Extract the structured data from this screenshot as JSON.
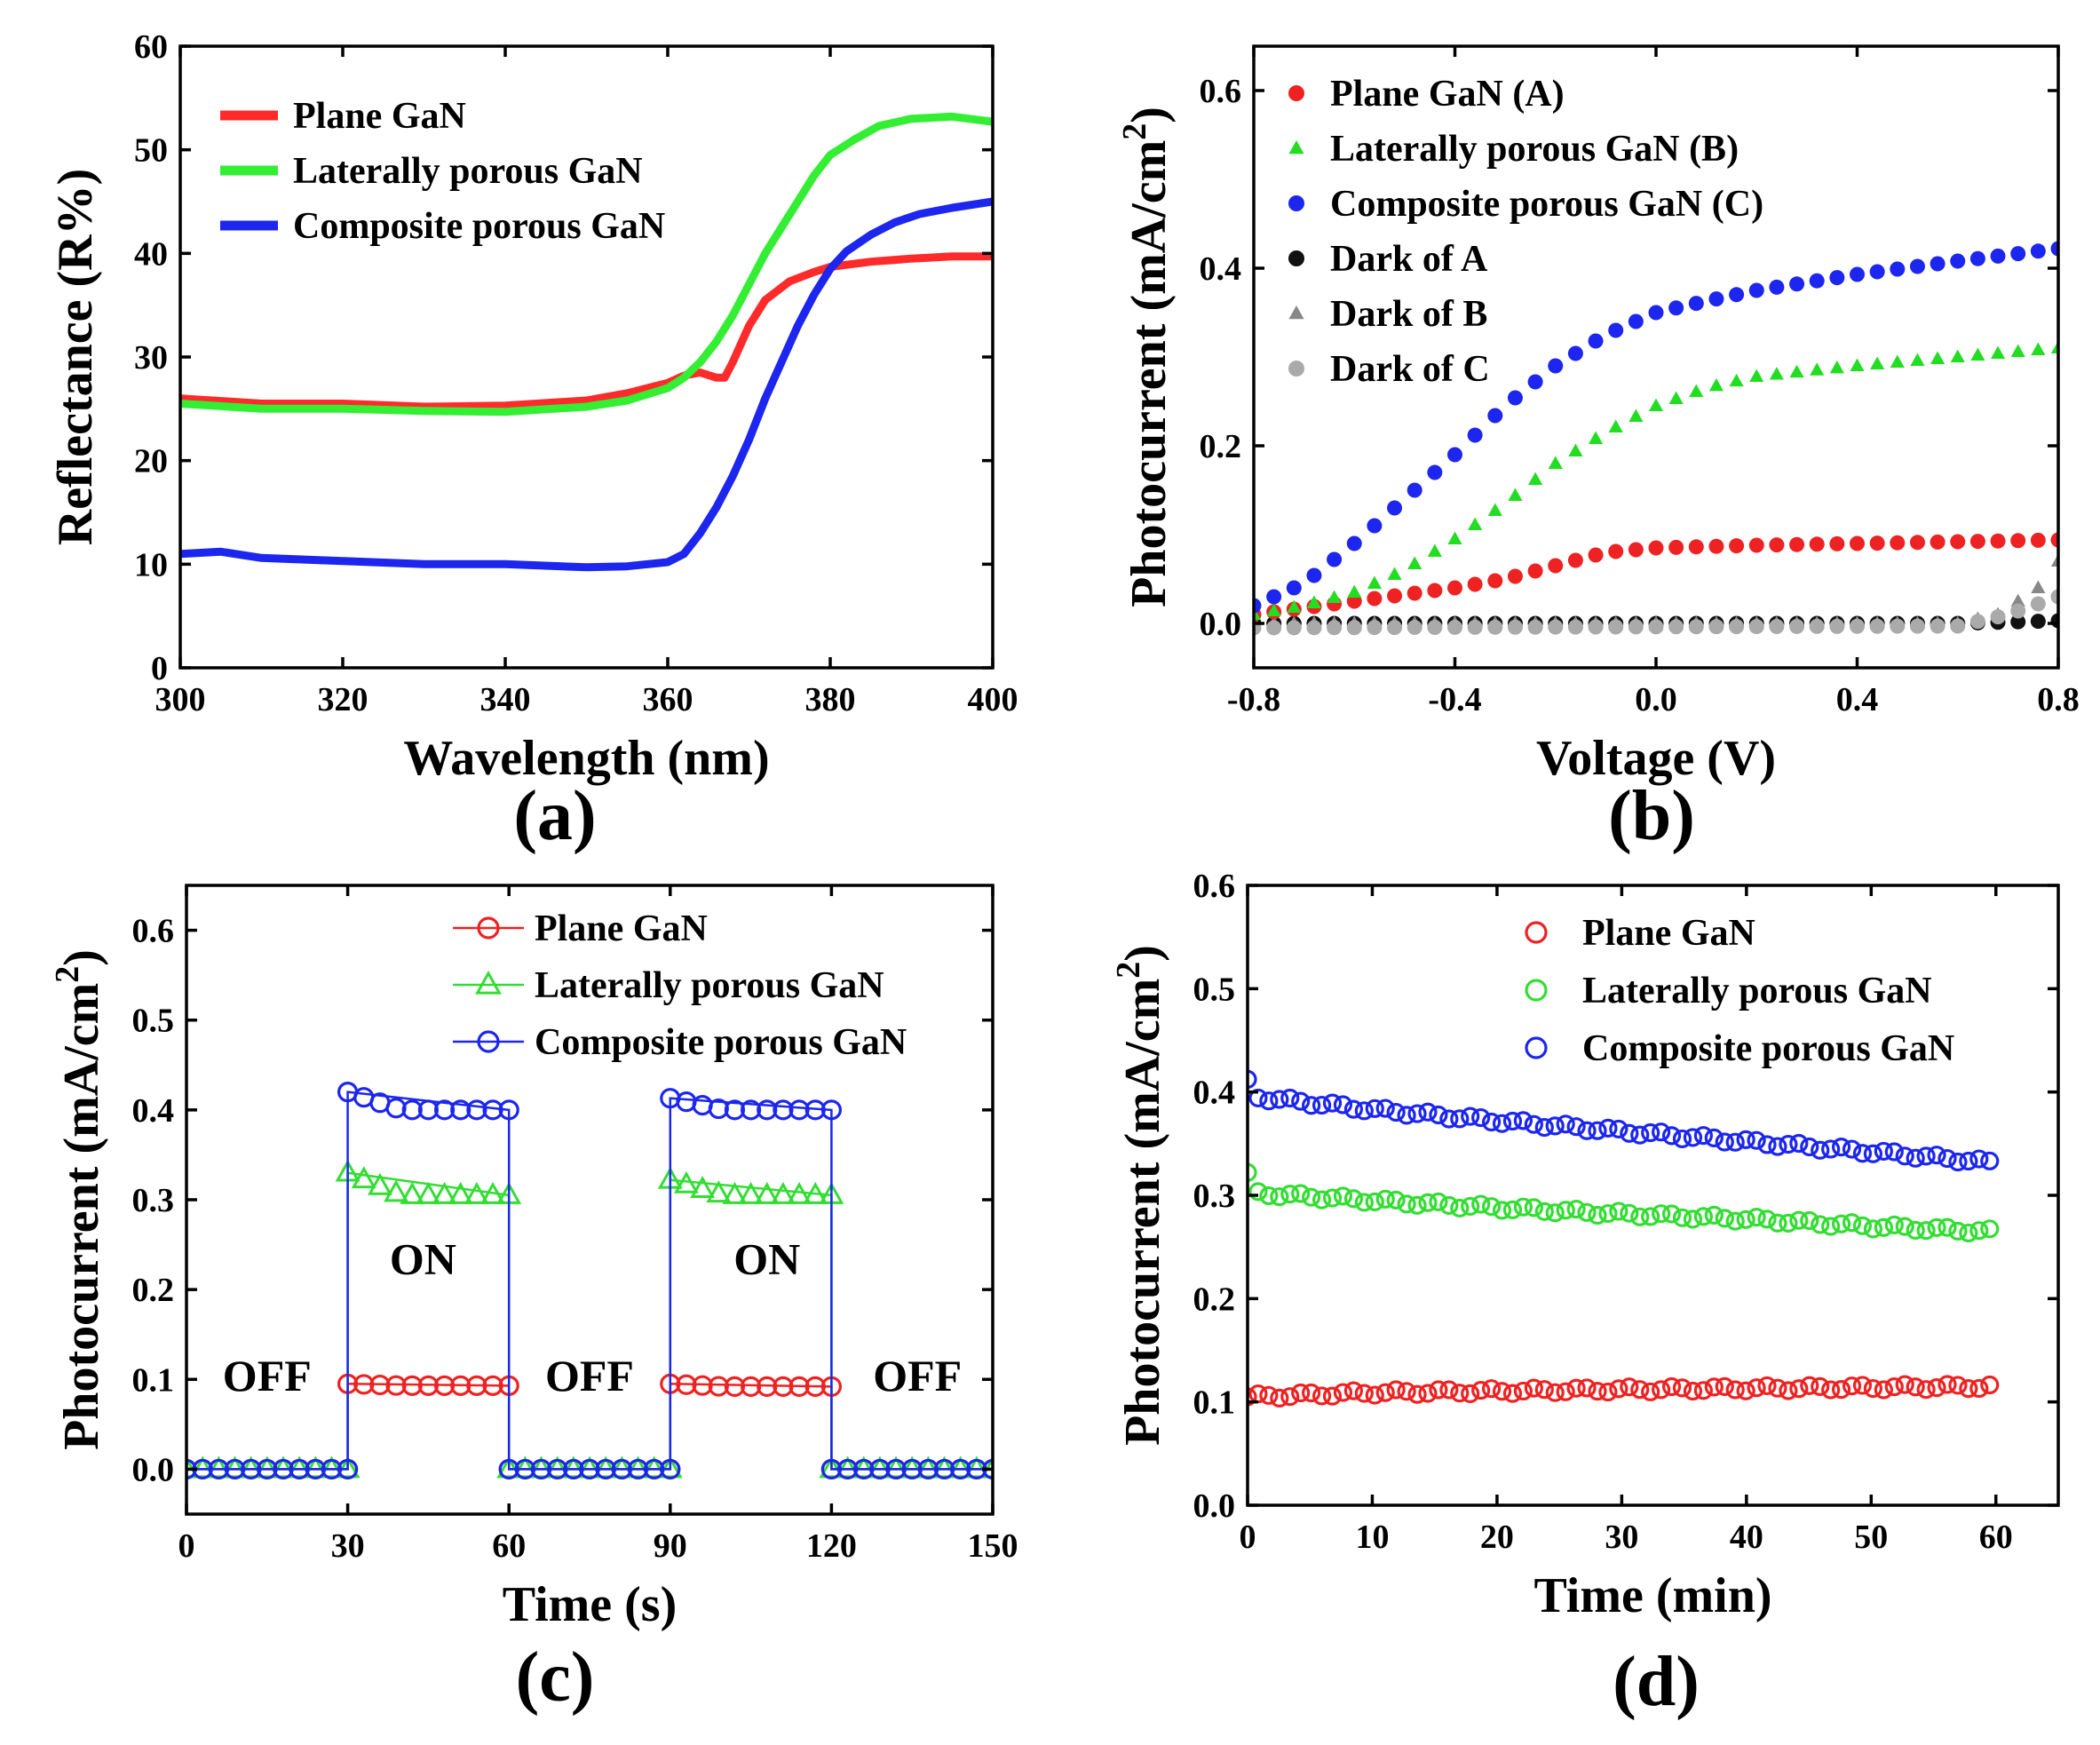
{
  "chart_data": [
    {
      "panel_label": "(a)",
      "type": "line",
      "xlabel": "Wavelength (nm)",
      "ylabel": "Reflectance (R%)",
      "xlim": [
        300,
        400
      ],
      "ylim": [
        0,
        60
      ],
      "xticks": [
        300,
        320,
        340,
        360,
        380,
        400
      ],
      "yticks": [
        0,
        10,
        20,
        30,
        40,
        50,
        60
      ],
      "legend_position": "top-left",
      "series": [
        {
          "name": "Plane GaN",
          "color": "#ff2a2a",
          "x": [
            300,
            310,
            320,
            330,
            340,
            350,
            355,
            360,
            362,
            364,
            366,
            367,
            368,
            370,
            372,
            375,
            378,
            380,
            385,
            390,
            395,
            400
          ],
          "y": [
            26,
            25.5,
            25.5,
            25.2,
            25.3,
            25.8,
            26.5,
            27.5,
            28.2,
            28.5,
            28,
            28,
            29.5,
            33,
            35.5,
            37.3,
            38.2,
            38.7,
            39.2,
            39.5,
            39.7,
            39.7
          ]
        },
        {
          "name": "Laterally porous GaN",
          "color": "#33ee33",
          "x": [
            300,
            310,
            320,
            330,
            340,
            350,
            355,
            360,
            362,
            364,
            366,
            368,
            370,
            372,
            374,
            376,
            378,
            380,
            383,
            386,
            390,
            395,
            400
          ],
          "y": [
            25.5,
            25,
            25,
            24.8,
            24.7,
            25.2,
            25.8,
            27,
            28,
            29.5,
            31.5,
            34,
            37,
            40,
            42.5,
            45,
            47.5,
            49.5,
            51,
            52.3,
            53,
            53.2,
            52.7
          ]
        },
        {
          "name": "Composite porous GaN",
          "color": "#1c26ee",
          "x": [
            300,
            305,
            310,
            320,
            330,
            340,
            350,
            355,
            360,
            362,
            364,
            366,
            368,
            370,
            372,
            374,
            376,
            378,
            380,
            382,
            385,
            388,
            391,
            395,
            400
          ],
          "y": [
            11,
            11.2,
            10.6,
            10.3,
            10,
            10,
            9.7,
            9.8,
            10.2,
            11,
            13,
            15.5,
            18.5,
            22,
            26,
            29.5,
            33,
            36,
            38.5,
            40.2,
            41.8,
            43,
            43.8,
            44.4,
            45
          ]
        }
      ]
    },
    {
      "panel_label": "(b)",
      "type": "scatter",
      "xlabel": "Voltage (V)",
      "ylabel": "Photocurrent (mA/cm",
      "ylabel_sup": "2",
      "ylabel_end": ")",
      "xlim": [
        -0.8,
        0.8
      ],
      "ylim": [
        -0.05,
        0.65
      ],
      "xticks": [
        -0.8,
        -0.4,
        0.0,
        0.4,
        0.8
      ],
      "xtick_labels": [
        "-0.8",
        "-0.4",
        "0.0",
        "0.4",
        "0.8"
      ],
      "yticks": [
        0.0,
        0.2,
        0.4,
        0.6
      ],
      "ytick_labels": [
        "0.0",
        "0.2",
        "0.4",
        "0.6"
      ],
      "x_start": -0.8,
      "x_step": 0.04,
      "legend_position": "top-left",
      "series": [
        {
          "name": "Plane GaN (A)",
          "color": "#ee2222",
          "marker": "circle",
          "knots_x": [
            -0.8,
            -0.6,
            -0.4,
            -0.3,
            -0.2,
            -0.1,
            0.0,
            0.2,
            0.4,
            0.6,
            0.8
          ],
          "knots_y": [
            0.01,
            0.025,
            0.04,
            0.05,
            0.065,
            0.08,
            0.085,
            0.088,
            0.09,
            0.092,
            0.094
          ]
        },
        {
          "name": "Laterally porous GaN (B)",
          "color": "#22dd22",
          "marker": "triangle",
          "knots_x": [
            -0.8,
            -0.7,
            -0.6,
            -0.5,
            -0.4,
            -0.3,
            -0.2,
            -0.1,
            0.0,
            0.1,
            0.2,
            0.4,
            0.6,
            0.8
          ],
          "knots_y": [
            0.01,
            0.02,
            0.035,
            0.06,
            0.095,
            0.135,
            0.18,
            0.215,
            0.245,
            0.265,
            0.278,
            0.29,
            0.3,
            0.31
          ]
        },
        {
          "name": "Composite porous GaN (C)",
          "color": "#1c26ee",
          "marker": "circle",
          "knots_x": [
            -0.8,
            -0.7,
            -0.6,
            -0.5,
            -0.4,
            -0.3,
            -0.2,
            -0.1,
            0.0,
            0.1,
            0.2,
            0.4,
            0.6,
            0.8
          ],
          "knots_y": [
            0.02,
            0.045,
            0.09,
            0.14,
            0.19,
            0.245,
            0.29,
            0.325,
            0.35,
            0.363,
            0.375,
            0.393,
            0.408,
            0.422
          ]
        },
        {
          "name": "Dark of A",
          "color": "#111111",
          "marker": "circle",
          "knots_x": [
            -0.8,
            0.6,
            0.8
          ],
          "knots_y": [
            0.0,
            0.0,
            0.003
          ]
        },
        {
          "name": "Dark of B",
          "color": "#888888",
          "marker": "triangle",
          "knots_x": [
            -0.8,
            0.6,
            0.68,
            0.76,
            0.8
          ],
          "knots_y": [
            0.0,
            0.0,
            0.01,
            0.04,
            0.07
          ]
        },
        {
          "name": "Dark of C",
          "color": "#aaaaaa",
          "marker": "circle",
          "knots_x": [
            -0.8,
            0.6,
            0.7,
            0.8
          ],
          "knots_y": [
            -0.005,
            -0.003,
            0.01,
            0.03
          ]
        }
      ]
    },
    {
      "panel_label": "(c)",
      "type": "line",
      "xlabel": "Time (s)",
      "ylabel": "Photocurrent (mA/cm",
      "ylabel_sup": "2",
      "ylabel_end": ")",
      "xlim": [
        0,
        150
      ],
      "ylim": [
        -0.05,
        0.65
      ],
      "xticks": [
        0,
        30,
        60,
        90,
        120,
        150
      ],
      "yticks": [
        0.0,
        0.1,
        0.2,
        0.3,
        0.4,
        0.5,
        0.6
      ],
      "ytick_labels": [
        "0.0",
        "0.1",
        "0.2",
        "0.3",
        "0.4",
        "0.5",
        "0.6"
      ],
      "marker_step": 3,
      "legend_position": "top-right",
      "on_intervals": [
        [
          30,
          60
        ],
        [
          90,
          120
        ]
      ],
      "annotations": [
        {
          "text": "OFF",
          "x": 15,
          "y": 0.105
        },
        {
          "text": "ON",
          "x": 44,
          "y": 0.235
        },
        {
          "text": "OFF",
          "x": 75,
          "y": 0.105
        },
        {
          "text": "ON",
          "x": 108,
          "y": 0.235
        },
        {
          "text": "OFF",
          "x": 136,
          "y": 0.105
        }
      ],
      "series": [
        {
          "name": "Plane GaN",
          "color": "#ee2222",
          "marker": "circle",
          "on_values": [
            [
              0.095,
              0.093
            ],
            [
              0.095,
              0.092
            ]
          ],
          "off_value": 0.0
        },
        {
          "name": "Laterally porous GaN",
          "color": "#33dd33",
          "marker": "triangle",
          "on_values": [
            [
              0.33,
              0.305
            ],
            [
              0.322,
              0.305
            ]
          ],
          "off_value": 0.0
        },
        {
          "name": "Composite porous GaN",
          "color": "#1c26ee",
          "marker": "circle",
          "on_values": [
            [
              0.42,
              0.4
            ],
            [
              0.413,
              0.4
            ]
          ],
          "off_value": 0.0
        }
      ]
    },
    {
      "panel_label": "(d)",
      "type": "scatter",
      "xlabel": "Time (min)",
      "ylabel": "Photocurrent (mA/cm",
      "ylabel_sup": "2",
      "ylabel_end": ")",
      "xlim": [
        0,
        65
      ],
      "ylim": [
        0,
        0.6
      ],
      "xticks": [
        0,
        10,
        20,
        30,
        40,
        50,
        60
      ],
      "yticks": [
        0.0,
        0.1,
        0.2,
        0.3,
        0.4,
        0.5,
        0.6
      ],
      "ytick_labels": [
        "0.0",
        "0.1",
        "0.2",
        "0.3",
        "0.4",
        "0.5",
        "0.6"
      ],
      "x_start": 0,
      "x_end": 59.5,
      "x_step": 0.85,
      "legend_position": "top-right",
      "series": [
        {
          "name": "Plane GaN",
          "color": "#ee2222",
          "marker": "open-circle",
          "knots_x": [
            0,
            10,
            30,
            59.5
          ],
          "knots_y": [
            0.105,
            0.109,
            0.112,
            0.115
          ]
        },
        {
          "name": "Laterally porous GaN",
          "color": "#33dd33",
          "marker": "open-circle",
          "knots_x": [
            0,
            0.8,
            10,
            20,
            30,
            40,
            50,
            59.5
          ],
          "knots_y": [
            0.32,
            0.302,
            0.295,
            0.288,
            0.282,
            0.277,
            0.27,
            0.265
          ]
        },
        {
          "name": "Composite porous GaN",
          "color": "#1c26ee",
          "marker": "open-circle",
          "knots_x": [
            0,
            0.8,
            10,
            20,
            30,
            40,
            50,
            59.5
          ],
          "knots_y": [
            0.41,
            0.395,
            0.383,
            0.372,
            0.362,
            0.352,
            0.342,
            0.332
          ]
        }
      ]
    }
  ]
}
